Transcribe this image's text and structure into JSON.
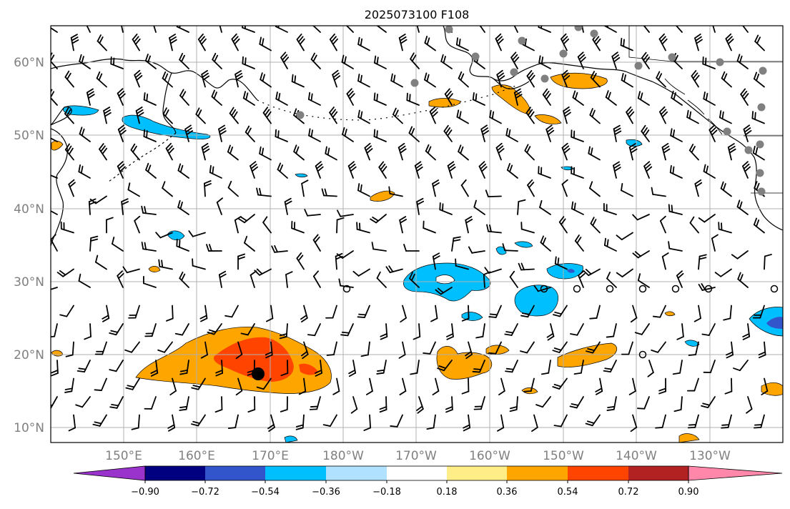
{
  "title": "2025073100 F108",
  "lat_labels": [
    "60°N",
    "50°N",
    "40°N",
    "30°N",
    "20°N",
    "10°N"
  ],
  "lon_labels": [
    "150°E",
    "160°E",
    "170°E",
    "180°W",
    "170°W",
    "160°W",
    "150°W",
    "140°W",
    "130°W"
  ],
  "colorbar": {
    "levels": [
      "−0.90",
      "−0.72",
      "−0.54",
      "−0.36",
      "−0.18",
      "0.18",
      "0.36",
      "0.54",
      "0.72",
      "0.90"
    ],
    "colors": [
      "#9933cc",
      "#000080",
      "#3355cc",
      "#00bfff",
      "#b0e2ff",
      "#ffffff",
      "#ffee88",
      "#ffa500",
      "#ff4400",
      "#b22222",
      "#ff88aa"
    ]
  },
  "colors": {
    "neg_strong": "#3355cc",
    "neg": "#00bfff",
    "pos": "#ffa500",
    "pos_strong": "#ff4400",
    "station": "#808080",
    "storm_center": "#000000"
  }
}
